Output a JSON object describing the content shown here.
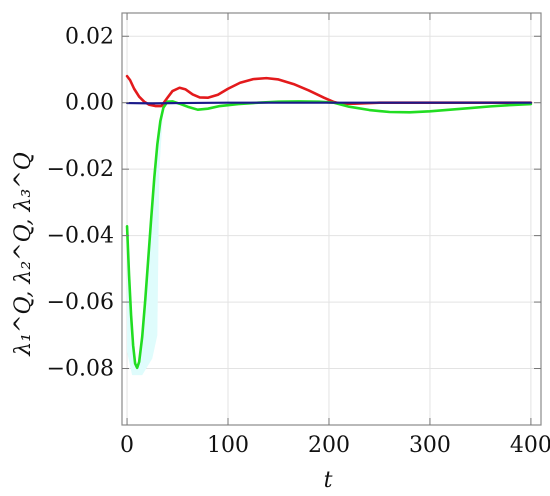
{
  "chart_data": {
    "type": "line",
    "title": "",
    "xlabel": "t",
    "ylabel": "λ₁^Q, λ₂^Q, λ₃^Q",
    "xlim": [
      -5,
      410
    ],
    "ylim": [
      -0.097,
      0.027
    ],
    "xticks": [
      0,
      100,
      200,
      300,
      400
    ],
    "yticks": [
      0.02,
      0.0,
      -0.02,
      -0.04,
      -0.06,
      -0.08
    ],
    "xtick_labels": [
      "0",
      "100",
      "200",
      "300",
      "400"
    ],
    "ytick_labels": [
      "0.02",
      "0.00",
      "−0.02",
      "−0.04",
      "−0.06",
      "−0.08"
    ],
    "grid": true,
    "legend": "none",
    "series": [
      {
        "color": "#e31a1c",
        "points": [
          [
            0,
            0.008
          ],
          [
            3,
            0.0068
          ],
          [
            7,
            0.0042
          ],
          [
            12,
            0.0018
          ],
          [
            17,
            0.0003
          ],
          [
            22,
            -0.0006
          ],
          [
            28,
            -0.001
          ],
          [
            34,
            -0.001
          ],
          [
            40,
            0.0015
          ],
          [
            45,
            0.0035
          ],
          [
            52,
            0.0045
          ],
          [
            58,
            0.004
          ],
          [
            65,
            0.0025
          ],
          [
            72,
            0.0016
          ],
          [
            80,
            0.0015
          ],
          [
            90,
            0.0024
          ],
          [
            100,
            0.0042
          ],
          [
            112,
            0.006
          ],
          [
            125,
            0.0071
          ],
          [
            138,
            0.0074
          ],
          [
            150,
            0.007
          ],
          [
            165,
            0.0056
          ],
          [
            180,
            0.0037
          ],
          [
            195,
            0.0015
          ],
          [
            205,
            0.0002
          ],
          [
            212,
            -0.0003
          ],
          [
            225,
            -0.0003
          ],
          [
            250,
            0.0
          ],
          [
            300,
            0.0
          ],
          [
            350,
            0.0
          ],
          [
            400,
            0.0
          ]
        ]
      },
      {
        "color": "#22dd22",
        "points": [
          [
            0,
            -0.0372
          ],
          [
            2,
            -0.052
          ],
          [
            4,
            -0.064
          ],
          [
            6,
            -0.073
          ],
          [
            8,
            -0.0785
          ],
          [
            10,
            -0.0798
          ],
          [
            12,
            -0.078
          ],
          [
            15,
            -0.0705
          ],
          [
            18,
            -0.0595
          ],
          [
            21,
            -0.047
          ],
          [
            24,
            -0.0345
          ],
          [
            27,
            -0.0225
          ],
          [
            30,
            -0.0125
          ],
          [
            33,
            -0.0055
          ],
          [
            36,
            -0.0015
          ],
          [
            40,
            0.0003
          ],
          [
            45,
            0.0004
          ],
          [
            52,
            -0.0003
          ],
          [
            60,
            -0.0012
          ],
          [
            70,
            -0.0021
          ],
          [
            80,
            -0.0018
          ],
          [
            92,
            -0.001
          ],
          [
            110,
            -0.0004
          ],
          [
            130,
            0.0
          ],
          [
            150,
            0.0003
          ],
          [
            170,
            0.0004
          ],
          [
            190,
            0.0003
          ],
          [
            205,
            0.0
          ],
          [
            220,
            -0.0012
          ],
          [
            240,
            -0.0022
          ],
          [
            260,
            -0.0028
          ],
          [
            280,
            -0.0029
          ],
          [
            300,
            -0.0026
          ],
          [
            320,
            -0.0021
          ],
          [
            340,
            -0.0016
          ],
          [
            360,
            -0.0011
          ],
          [
            380,
            -0.0007
          ],
          [
            400,
            -0.0004
          ]
        ]
      },
      {
        "color": "#1a1a8a",
        "points": [
          [
            0,
            -0.0001
          ],
          [
            25,
            -0.0002
          ],
          [
            50,
            -0.0001
          ],
          [
            100,
            0.0
          ],
          [
            200,
            0.0
          ],
          [
            300,
            0.0
          ],
          [
            400,
            0.0
          ]
        ]
      }
    ],
    "shaded_region": {
      "color": "#dffcfc",
      "points": [
        [
          0,
          -0.0372
        ],
        [
          1,
          -0.045
        ],
        [
          2,
          -0.052
        ],
        [
          3,
          -0.062
        ],
        [
          4,
          -0.072
        ],
        [
          6,
          -0.074
        ],
        [
          8,
          -0.0785
        ],
        [
          10,
          -0.0798
        ],
        [
          12,
          -0.078
        ],
        [
          15,
          -0.0705
        ],
        [
          18,
          -0.0595
        ],
        [
          21,
          -0.047
        ],
        [
          24,
          -0.0345
        ],
        [
          27,
          -0.0225
        ],
        [
          30,
          -0.0125
        ],
        [
          33,
          -0.0055
        ],
        [
          36,
          -0.0015
        ],
        [
          32,
          -0.02
        ],
        [
          30,
          -0.07
        ],
        [
          25,
          -0.077
        ],
        [
          15,
          -0.082
        ],
        [
          5,
          -0.082
        ],
        [
          0,
          -0.075
        ]
      ]
    }
  }
}
